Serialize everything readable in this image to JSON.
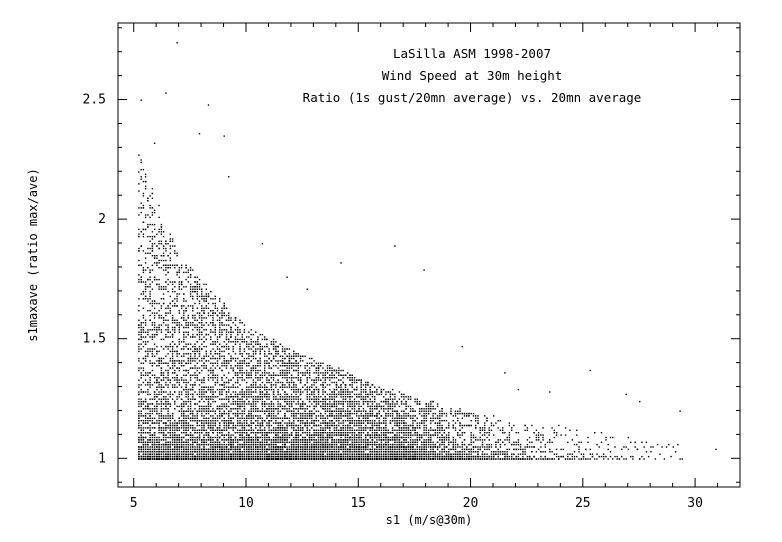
{
  "chart_data": {
    "type": "scatter",
    "title_lines": [
      "LaSilla ASM 1998-2007",
      "Wind Speed at 30m height",
      "Ratio (1s gust/20mn average) vs. 20mn average"
    ],
    "xlabel": "s1 (m/s@30m)",
    "ylabel": "s1maxave (ratio max/ave)",
    "xlim": [
      4.3,
      32.0
    ],
    "ylim": [
      0.88,
      2.82
    ],
    "x_ticks": [
      5,
      10,
      15,
      20,
      25,
      30
    ],
    "x_tick_labels": [
      "5",
      "10",
      "15",
      "20",
      "25",
      "30"
    ],
    "y_ticks": [
      1,
      1.5,
      2,
      2.5
    ],
    "y_tick_labels": [
      "1",
      "1.5",
      "2",
      "2.5"
    ],
    "grid": false,
    "legend": "none",
    "marker_color": "#000000",
    "outliers": [
      [
        6.9,
        2.74
      ],
      [
        6.4,
        2.53
      ],
      [
        5.3,
        2.5
      ],
      [
        8.3,
        2.48
      ],
      [
        9.0,
        2.35
      ],
      [
        7.9,
        2.36
      ],
      [
        5.9,
        2.32
      ],
      [
        9.2,
        2.18
      ],
      [
        10.7,
        1.9
      ],
      [
        16.6,
        1.89
      ],
      [
        17.9,
        1.79
      ],
      [
        14.2,
        1.82
      ],
      [
        25.3,
        1.37
      ],
      [
        27.5,
        1.24
      ],
      [
        29.3,
        1.2
      ],
      [
        30.9,
        1.04
      ],
      [
        26.9,
        1.27
      ],
      [
        23.5,
        1.28
      ],
      [
        22.1,
        1.29
      ],
      [
        28.0,
        1.03
      ],
      [
        24.8,
        1.03
      ],
      [
        21.5,
        1.36
      ],
      [
        19.6,
        1.47
      ],
      [
        12.7,
        1.71
      ],
      [
        11.8,
        1.76
      ]
    ],
    "density_model": {
      "x_range": [
        5.2,
        29.5
      ],
      "ratio_floor": 1.0,
      "spread_at_x": [
        [
          5.2,
          1.28
        ],
        [
          7,
          0.85
        ],
        [
          10,
          0.55
        ],
        [
          13,
          0.42
        ],
        [
          16,
          0.3
        ],
        [
          19,
          0.22
        ],
        [
          22,
          0.16
        ],
        [
          26,
          0.12
        ],
        [
          29.5,
          0.08
        ]
      ],
      "relative_density_at_x": [
        [
          5.2,
          1.0
        ],
        [
          8,
          1.0
        ],
        [
          12,
          0.95
        ],
        [
          15,
          0.85
        ],
        [
          17,
          0.6
        ],
        [
          19,
          0.32
        ],
        [
          21,
          0.14
        ],
        [
          24,
          0.05
        ],
        [
          27,
          0.02
        ],
        [
          29.5,
          0.01
        ]
      ],
      "wind_speed_step": 0.1
    }
  }
}
